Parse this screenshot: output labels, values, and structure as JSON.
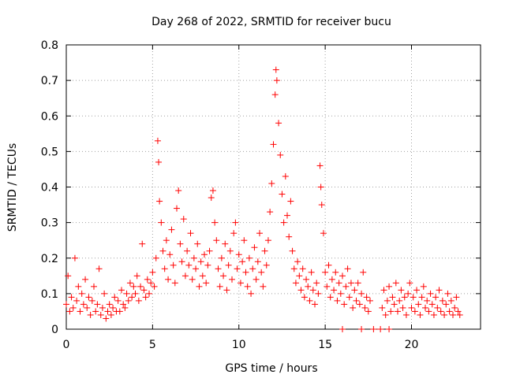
{
  "chart_data": {
    "type": "scatter",
    "title": "Day 268 of 2022, SRMTID for receiver bucu",
    "xlabel": "GPS time / hours",
    "ylabel": "SRMTID / TECUs",
    "xlim": [
      0,
      24
    ],
    "ylim": [
      0,
      0.8
    ],
    "xticks": [
      0,
      5,
      10,
      15,
      20
    ],
    "yticks": [
      0,
      0.1,
      0.2,
      0.3,
      0.4,
      0.5,
      0.6,
      0.7,
      0.8
    ],
    "xtick_labels": [
      "0",
      "5",
      "10",
      "15",
      "20"
    ],
    "ytick_labels": [
      "0",
      "0.1",
      "0.2",
      "0.3",
      "0.4",
      "0.5",
      "0.6",
      "0.7",
      "0.8"
    ],
    "grid": true,
    "marker": "+",
    "color": "#ff0000",
    "series": [
      {
        "name": "SRMTID",
        "points": [
          [
            0.0,
            0.07
          ],
          [
            0.1,
            0.15
          ],
          [
            0.2,
            0.05
          ],
          [
            0.3,
            0.09
          ],
          [
            0.4,
            0.06
          ],
          [
            0.5,
            0.2
          ],
          [
            0.6,
            0.08
          ],
          [
            0.7,
            0.12
          ],
          [
            0.8,
            0.05
          ],
          [
            0.9,
            0.1
          ],
          [
            1.0,
            0.07
          ],
          [
            1.1,
            0.14
          ],
          [
            1.2,
            0.06
          ],
          [
            1.3,
            0.09
          ],
          [
            1.4,
            0.04
          ],
          [
            1.5,
            0.08
          ],
          [
            1.6,
            0.12
          ],
          [
            1.7,
            0.05
          ],
          [
            1.8,
            0.07
          ],
          [
            1.9,
            0.17
          ],
          [
            2.0,
            0.04
          ],
          [
            2.1,
            0.06
          ],
          [
            2.2,
            0.1
          ],
          [
            2.3,
            0.03
          ],
          [
            2.4,
            0.05
          ],
          [
            2.5,
            0.07
          ],
          [
            2.6,
            0.04
          ],
          [
            2.7,
            0.06
          ],
          [
            2.8,
            0.09
          ],
          [
            2.9,
            0.05
          ],
          [
            3.0,
            0.08
          ],
          [
            3.1,
            0.05
          ],
          [
            3.2,
            0.11
          ],
          [
            3.3,
            0.07
          ],
          [
            3.4,
            0.06
          ],
          [
            3.5,
            0.1
          ],
          [
            3.6,
            0.08
          ],
          [
            3.7,
            0.13
          ],
          [
            3.8,
            0.09
          ],
          [
            3.9,
            0.12
          ],
          [
            4.0,
            0.1
          ],
          [
            4.1,
            0.15
          ],
          [
            4.2,
            0.08
          ],
          [
            4.3,
            0.12
          ],
          [
            4.4,
            0.24
          ],
          [
            4.5,
            0.11
          ],
          [
            4.6,
            0.09
          ],
          [
            4.7,
            0.14
          ],
          [
            4.8,
            0.1
          ],
          [
            4.9,
            0.13
          ],
          [
            5.0,
            0.16
          ],
          [
            5.1,
            0.12
          ],
          [
            5.2,
            0.2
          ],
          [
            5.3,
            0.53
          ],
          [
            5.35,
            0.47
          ],
          [
            5.4,
            0.36
          ],
          [
            5.5,
            0.3
          ],
          [
            5.6,
            0.22
          ],
          [
            5.7,
            0.17
          ],
          [
            5.8,
            0.25
          ],
          [
            5.9,
            0.14
          ],
          [
            6.0,
            0.21
          ],
          [
            6.1,
            0.28
          ],
          [
            6.2,
            0.18
          ],
          [
            6.3,
            0.13
          ],
          [
            6.4,
            0.34
          ],
          [
            6.5,
            0.39
          ],
          [
            6.6,
            0.24
          ],
          [
            6.7,
            0.19
          ],
          [
            6.8,
            0.31
          ],
          [
            6.9,
            0.15
          ],
          [
            7.0,
            0.22
          ],
          [
            7.1,
            0.18
          ],
          [
            7.2,
            0.27
          ],
          [
            7.3,
            0.14
          ],
          [
            7.4,
            0.2
          ],
          [
            7.5,
            0.17
          ],
          [
            7.6,
            0.24
          ],
          [
            7.7,
            0.12
          ],
          [
            7.8,
            0.19
          ],
          [
            7.9,
            0.15
          ],
          [
            8.0,
            0.21
          ],
          [
            8.1,
            0.13
          ],
          [
            8.2,
            0.18
          ],
          [
            8.3,
            0.22
          ],
          [
            8.4,
            0.37
          ],
          [
            8.5,
            0.39
          ],
          [
            8.6,
            0.3
          ],
          [
            8.7,
            0.25
          ],
          [
            8.8,
            0.17
          ],
          [
            8.9,
            0.12
          ],
          [
            9.0,
            0.2
          ],
          [
            9.1,
            0.15
          ],
          [
            9.2,
            0.24
          ],
          [
            9.3,
            0.11
          ],
          [
            9.4,
            0.18
          ],
          [
            9.5,
            0.22
          ],
          [
            9.6,
            0.14
          ],
          [
            9.7,
            0.27
          ],
          [
            9.8,
            0.3
          ],
          [
            9.9,
            0.17
          ],
          [
            10.0,
            0.21
          ],
          [
            10.1,
            0.13
          ],
          [
            10.2,
            0.19
          ],
          [
            10.3,
            0.25
          ],
          [
            10.4,
            0.16
          ],
          [
            10.5,
            0.12
          ],
          [
            10.6,
            0.2
          ],
          [
            10.7,
            0.1
          ],
          [
            10.8,
            0.17
          ],
          [
            10.9,
            0.23
          ],
          [
            11.0,
            0.14
          ],
          [
            11.1,
            0.19
          ],
          [
            11.2,
            0.27
          ],
          [
            11.3,
            0.16
          ],
          [
            11.4,
            0.12
          ],
          [
            11.5,
            0.22
          ],
          [
            11.6,
            0.18
          ],
          [
            11.7,
            0.25
          ],
          [
            11.8,
            0.33
          ],
          [
            11.9,
            0.41
          ],
          [
            12.0,
            0.52
          ],
          [
            12.1,
            0.66
          ],
          [
            12.15,
            0.73
          ],
          [
            12.2,
            0.7
          ],
          [
            12.3,
            0.58
          ],
          [
            12.4,
            0.49
          ],
          [
            12.5,
            0.38
          ],
          [
            12.6,
            0.3
          ],
          [
            12.7,
            0.43
          ],
          [
            12.8,
            0.32
          ],
          [
            12.9,
            0.26
          ],
          [
            13.0,
            0.36
          ],
          [
            13.1,
            0.22
          ],
          [
            13.2,
            0.17
          ],
          [
            13.3,
            0.13
          ],
          [
            13.4,
            0.19
          ],
          [
            13.5,
            0.15
          ],
          [
            13.6,
            0.11
          ],
          [
            13.7,
            0.17
          ],
          [
            13.8,
            0.09
          ],
          [
            13.9,
            0.14
          ],
          [
            14.0,
            0.12
          ],
          [
            14.1,
            0.08
          ],
          [
            14.2,
            0.16
          ],
          [
            14.3,
            0.11
          ],
          [
            14.4,
            0.07
          ],
          [
            14.5,
            0.13
          ],
          [
            14.6,
            0.1
          ],
          [
            14.7,
            0.46
          ],
          [
            14.75,
            0.4
          ],
          [
            14.8,
            0.35
          ],
          [
            14.9,
            0.27
          ],
          [
            15.0,
            0.16
          ],
          [
            15.1,
            0.12
          ],
          [
            15.2,
            0.18
          ],
          [
            15.3,
            0.09
          ],
          [
            15.4,
            0.14
          ],
          [
            15.5,
            0.11
          ],
          [
            15.6,
            0.16
          ],
          [
            15.7,
            0.08
          ],
          [
            15.8,
            0.13
          ],
          [
            15.9,
            0.1
          ],
          [
            16.0,
            0.15
          ],
          [
            16.1,
            0.07
          ],
          [
            16.2,
            0.12
          ],
          [
            16.3,
            0.17
          ],
          [
            16.4,
            0.09
          ],
          [
            16.5,
            0.13
          ],
          [
            16.6,
            0.06
          ],
          [
            16.7,
            0.11
          ],
          [
            16.8,
            0.08
          ],
          [
            16.9,
            0.13
          ],
          [
            17.0,
            0.07
          ],
          [
            17.1,
            0.1
          ],
          [
            17.2,
            0.16
          ],
          [
            17.3,
            0.06
          ],
          [
            17.4,
            0.09
          ],
          [
            17.5,
            0.05
          ],
          [
            17.6,
            0.08
          ],
          [
            18.3,
            0.06
          ],
          [
            18.4,
            0.11
          ],
          [
            18.5,
            0.04
          ],
          [
            18.6,
            0.08
          ],
          [
            18.7,
            0.12
          ],
          [
            18.8,
            0.05
          ],
          [
            18.9,
            0.09
          ],
          [
            19.0,
            0.07
          ],
          [
            19.1,
            0.13
          ],
          [
            19.2,
            0.05
          ],
          [
            19.3,
            0.08
          ],
          [
            19.4,
            0.11
          ],
          [
            19.5,
            0.06
          ],
          [
            19.6,
            0.09
          ],
          [
            19.7,
            0.04
          ],
          [
            19.8,
            0.1
          ],
          [
            19.9,
            0.13
          ],
          [
            20.0,
            0.06
          ],
          [
            20.1,
            0.09
          ],
          [
            20.2,
            0.05
          ],
          [
            20.3,
            0.11
          ],
          [
            20.4,
            0.07
          ],
          [
            20.5,
            0.04
          ],
          [
            20.6,
            0.09
          ],
          [
            20.7,
            0.12
          ],
          [
            20.8,
            0.06
          ],
          [
            20.9,
            0.08
          ],
          [
            21.0,
            0.05
          ],
          [
            21.1,
            0.1
          ],
          [
            21.2,
            0.07
          ],
          [
            21.3,
            0.04
          ],
          [
            21.4,
            0.09
          ],
          [
            21.5,
            0.06
          ],
          [
            21.6,
            0.11
          ],
          [
            21.7,
            0.05
          ],
          [
            21.8,
            0.08
          ],
          [
            21.9,
            0.04
          ],
          [
            22.0,
            0.07
          ],
          [
            22.1,
            0.1
          ],
          [
            22.2,
            0.05
          ],
          [
            22.3,
            0.08
          ],
          [
            22.4,
            0.04
          ],
          [
            22.5,
            0.06
          ],
          [
            22.6,
            0.09
          ],
          [
            22.7,
            0.05
          ],
          [
            22.8,
            0.04
          ],
          [
            16.0,
            0.0
          ],
          [
            17.1,
            0.0
          ],
          [
            17.8,
            0.0
          ],
          [
            18.2,
            0.0
          ],
          [
            18.7,
            0.0
          ]
        ]
      }
    ]
  }
}
